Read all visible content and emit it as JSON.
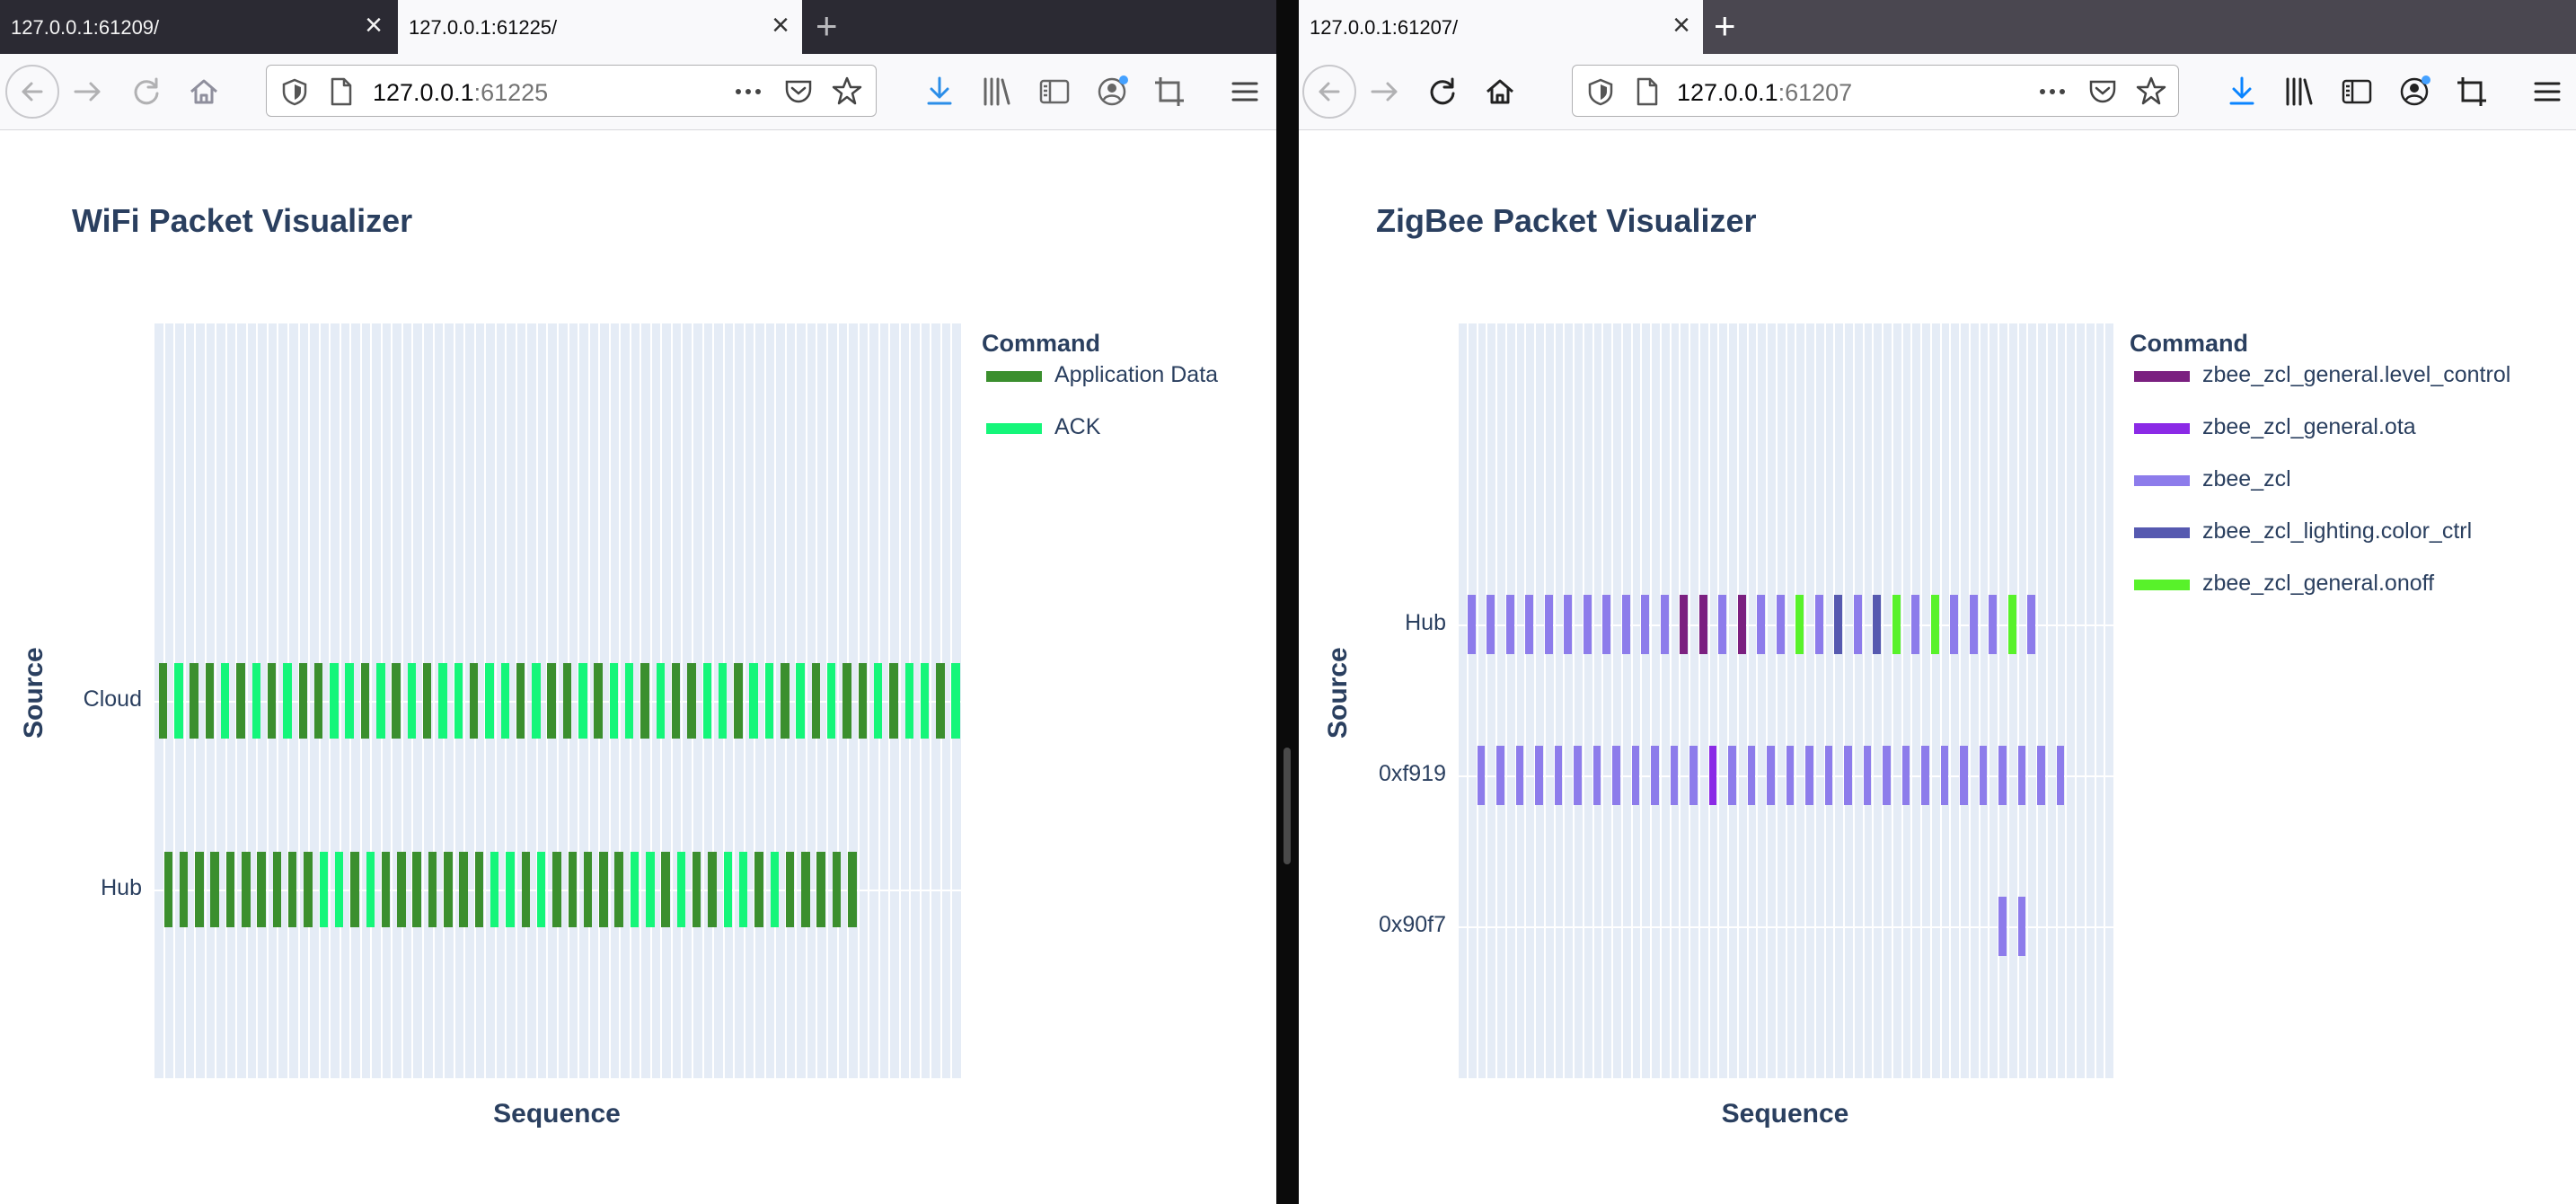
{
  "left": {
    "tabs": [
      {
        "title": "127.0.0.1:61209/",
        "active": false
      },
      {
        "title": "127.0.0.1:61225/",
        "active": true
      }
    ],
    "url": {
      "host": "127.0.0.1",
      "port": ":61225"
    },
    "page_title": "WiFi Packet Visualizer"
  },
  "right": {
    "tabs": [
      {
        "title": "127.0.0.1:61207/",
        "active": true
      }
    ],
    "url": {
      "host": "127.0.0.1",
      "port": ":61207"
    },
    "page_title": "ZigBee Packet Visualizer"
  },
  "chart_data": [
    {
      "type": "bar",
      "title": "WiFi Packet Visualizer",
      "xlabel": "Sequence",
      "ylabel": "Source",
      "categories": [
        "Cloud",
        "Hub"
      ],
      "legend": {
        "title": "Command",
        "placement": "right"
      },
      "grid": true,
      "x_slots": 78,
      "series": [
        {
          "name": "Application Data",
          "color": "#3b8f2e"
        },
        {
          "name": "ACK",
          "color": "#15f67a"
        }
      ],
      "packets": [
        {
          "source": "Cloud",
          "pattern": "AKAAKAKAKAAKKAKAKAKKAKKAKAAKAKKAKAAKKAKKAKAKAAKAKKAK"
        },
        {
          "source": "Hub",
          "pattern": "AAAAAAAAAAKKAKAAAAAAAKKAKAAAAAKKAKAAKKAKAAAAA"
        }
      ]
    },
    {
      "type": "bar",
      "title": "ZigBee Packet Visualizer",
      "xlabel": "Sequence",
      "ylabel": "Source",
      "categories": [
        "Hub",
        "0xf919",
        "0x90f7"
      ],
      "legend": {
        "title": "Command",
        "placement": "right"
      },
      "grid": true,
      "x_slots": 68,
      "series": [
        {
          "name": "zbee_zcl_general.level_control",
          "color": "#7b2080"
        },
        {
          "name": "zbee_zcl_general.ota",
          "color": "#8b2ae6"
        },
        {
          "name": "zbee_zcl",
          "color": "#8d7ceb"
        },
        {
          "name": "zbee_zcl_lighting.color_ctrl",
          "color": "#5659b0"
        },
        {
          "name": "zbee_zcl_general.onoff",
          "color": "#58f22a"
        }
      ],
      "packets": [
        {
          "source": "Hub",
          "pattern": "ZZZZZZZZZZZLLZLZZGZCZCGZGZZZGZ"
        },
        {
          "source": "0xf919",
          "pattern": "ZZZZZZZZZZZZOZZZZZZZZZZZZZZZZZZ"
        },
        {
          "source": "0x90f7",
          "pattern": "ZZ"
        }
      ]
    }
  ]
}
